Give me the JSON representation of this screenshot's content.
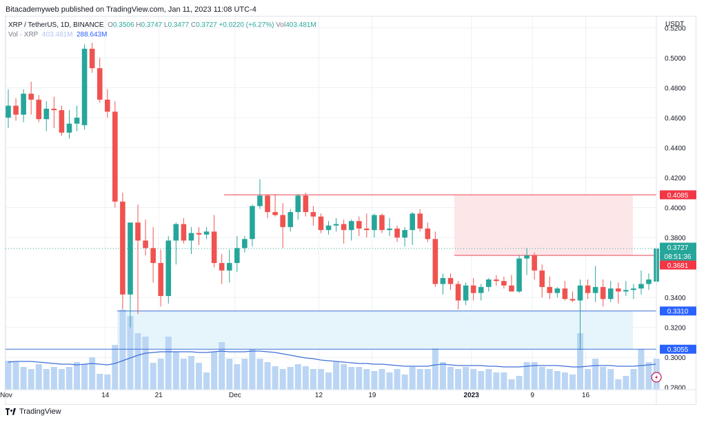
{
  "header": {
    "published": "Bitacademyweb published on TradingView.com, Jan 11, 2023 11:08 UTC-4"
  },
  "legend": {
    "symbol": "XRP / TetherUS, 1D, BINANCE",
    "open_label": "O",
    "open": "0.3506",
    "high_label": "H",
    "high": "0.3747",
    "low_label": "L",
    "low": "0.3477",
    "close_label": "C",
    "close": "0.3727",
    "change": "+0.0220 (+6.27%)",
    "vol_label": "Vol",
    "vol": "403.481M",
    "vol_row_label": "Vol · XRP",
    "vol_row_value": "403.481M",
    "vol_ma": "288.643M"
  },
  "footer": {
    "brand": "TradingView"
  },
  "chart_data": {
    "type": "candlestick",
    "currency": "USDT",
    "y_ticks": [
      "0.5200",
      "0.5000",
      "0.4800",
      "0.4600",
      "0.4400",
      "0.4200",
      "0.4000",
      "0.3800",
      "0.3400",
      "0.3200",
      "0.3000",
      "0.2800"
    ],
    "ylim": [
      0.2785,
      0.5275
    ],
    "x_ticks": [
      {
        "label": "Nov",
        "x": 0
      },
      {
        "label": "14",
        "x": 13
      },
      {
        "label": "21",
        "x": 20
      },
      {
        "label": "Dec",
        "x": 30
      },
      {
        "label": "12",
        "x": 41
      },
      {
        "label": "19",
        "x": 48
      },
      {
        "label": "2023",
        "x": 61
      },
      {
        "label": "9",
        "x": 69
      },
      {
        "label": "16",
        "x": 76
      }
    ],
    "price_labels": [
      {
        "text": "0.4085",
        "value": 0.4085,
        "color": "#f23645"
      },
      {
        "text": "0.3727",
        "value": 0.3727,
        "color": "#26a69a"
      },
      {
        "text": "08:51:36",
        "value": 0.3705,
        "color": "#26a69a"
      },
      {
        "text": "0.3681",
        "value": 0.3681,
        "color": "#f23645"
      },
      {
        "text": "0.3310",
        "value": 0.331,
        "color": "#2962ff"
      },
      {
        "text": "0.3055",
        "value": 0.3055,
        "color": "#2962ff"
      }
    ],
    "resistance_line": 0.4085,
    "entry_line": 0.3681,
    "support_lines": [
      0.331,
      0.3055
    ],
    "candles": [
      {
        "o": 0.46,
        "h": 0.479,
        "l": 0.453,
        "c": 0.468,
        "v": 0.042
      },
      {
        "o": 0.468,
        "h": 0.473,
        "l": 0.458,
        "c": 0.462,
        "v": 0.04
      },
      {
        "o": 0.462,
        "h": 0.479,
        "l": 0.457,
        "c": 0.476,
        "v": 0.033
      },
      {
        "o": 0.476,
        "h": 0.484,
        "l": 0.462,
        "c": 0.472,
        "v": 0.03
      },
      {
        "o": 0.472,
        "h": 0.475,
        "l": 0.457,
        "c": 0.459,
        "v": 0.037
      },
      {
        "o": 0.459,
        "h": 0.471,
        "l": 0.451,
        "c": 0.466,
        "v": 0.03
      },
      {
        "o": 0.466,
        "h": 0.474,
        "l": 0.453,
        "c": 0.465,
        "v": 0.033
      },
      {
        "o": 0.465,
        "h": 0.468,
        "l": 0.448,
        "c": 0.45,
        "v": 0.03
      },
      {
        "o": 0.45,
        "h": 0.465,
        "l": 0.446,
        "c": 0.456,
        "v": 0.033
      },
      {
        "o": 0.456,
        "h": 0.468,
        "l": 0.451,
        "c": 0.46,
        "v": 0.04
      },
      {
        "o": 0.455,
        "h": 0.509,
        "l": 0.452,
        "c": 0.506,
        "v": 0.037
      },
      {
        "o": 0.506,
        "h": 0.51,
        "l": 0.49,
        "c": 0.493,
        "v": 0.047
      },
      {
        "o": 0.493,
        "h": 0.5,
        "l": 0.47,
        "c": 0.472,
        "v": 0.023
      },
      {
        "o": 0.472,
        "h": 0.479,
        "l": 0.46,
        "c": 0.464,
        "v": 0.022
      },
      {
        "o": 0.464,
        "h": 0.471,
        "l": 0.4,
        "c": 0.404,
        "v": 0.065
      },
      {
        "o": 0.404,
        "h": 0.41,
        "l": 0.332,
        "c": 0.342,
        "v": 0.116
      },
      {
        "o": 0.342,
        "h": 0.39,
        "l": 0.32,
        "c": 0.39,
        "v": 0.107
      },
      {
        "o": 0.39,
        "h": 0.402,
        "l": 0.329,
        "c": 0.378,
        "v": 0.082
      },
      {
        "o": 0.378,
        "h": 0.392,
        "l": 0.368,
        "c": 0.373,
        "v": 0.077
      },
      {
        "o": 0.373,
        "h": 0.387,
        "l": 0.35,
        "c": 0.363,
        "v": 0.039
      },
      {
        "o": 0.363,
        "h": 0.372,
        "l": 0.334,
        "c": 0.341,
        "v": 0.045
      },
      {
        "o": 0.341,
        "h": 0.381,
        "l": 0.336,
        "c": 0.378,
        "v": 0.077
      },
      {
        "o": 0.378,
        "h": 0.39,
        "l": 0.362,
        "c": 0.389,
        "v": 0.055
      },
      {
        "o": 0.389,
        "h": 0.393,
        "l": 0.376,
        "c": 0.378,
        "v": 0.045
      },
      {
        "o": 0.378,
        "h": 0.387,
        "l": 0.369,
        "c": 0.383,
        "v": 0.049
      },
      {
        "o": 0.383,
        "h": 0.387,
        "l": 0.375,
        "c": 0.382,
        "v": 0.039
      },
      {
        "o": 0.382,
        "h": 0.387,
        "l": 0.379,
        "c": 0.384,
        "v": 0.025
      },
      {
        "o": 0.384,
        "h": 0.395,
        "l": 0.36,
        "c": 0.363,
        "v": 0.055
      },
      {
        "o": 0.363,
        "h": 0.369,
        "l": 0.349,
        "c": 0.358,
        "v": 0.069
      },
      {
        "o": 0.358,
        "h": 0.372,
        "l": 0.35,
        "c": 0.363,
        "v": 0.045
      },
      {
        "o": 0.363,
        "h": 0.381,
        "l": 0.357,
        "c": 0.373,
        "v": 0.037
      },
      {
        "o": 0.373,
        "h": 0.381,
        "l": 0.37,
        "c": 0.379,
        "v": 0.045
      },
      {
        "o": 0.379,
        "h": 0.402,
        "l": 0.374,
        "c": 0.401,
        "v": 0.059
      },
      {
        "o": 0.401,
        "h": 0.419,
        "l": 0.399,
        "c": 0.408,
        "v": 0.045
      },
      {
        "o": 0.408,
        "h": 0.409,
        "l": 0.393,
        "c": 0.397,
        "v": 0.04
      },
      {
        "o": 0.397,
        "h": 0.409,
        "l": 0.394,
        "c": 0.395,
        "v": 0.034
      },
      {
        "o": 0.395,
        "h": 0.403,
        "l": 0.373,
        "c": 0.387,
        "v": 0.03
      },
      {
        "o": 0.387,
        "h": 0.399,
        "l": 0.384,
        "c": 0.397,
        "v": 0.033
      },
      {
        "o": 0.397,
        "h": 0.409,
        "l": 0.392,
        "c": 0.408,
        "v": 0.037
      },
      {
        "o": 0.408,
        "h": 0.41,
        "l": 0.394,
        "c": 0.397,
        "v": 0.034
      },
      {
        "o": 0.397,
        "h": 0.401,
        "l": 0.388,
        "c": 0.394,
        "v": 0.03
      },
      {
        "o": 0.394,
        "h": 0.396,
        "l": 0.383,
        "c": 0.385,
        "v": 0.03
      },
      {
        "o": 0.385,
        "h": 0.391,
        "l": 0.382,
        "c": 0.388,
        "v": 0.025
      },
      {
        "o": 0.388,
        "h": 0.393,
        "l": 0.384,
        "c": 0.389,
        "v": 0.04
      },
      {
        "o": 0.389,
        "h": 0.392,
        "l": 0.376,
        "c": 0.385,
        "v": 0.037
      },
      {
        "o": 0.385,
        "h": 0.392,
        "l": 0.378,
        "c": 0.391,
        "v": 0.033
      },
      {
        "o": 0.391,
        "h": 0.394,
        "l": 0.381,
        "c": 0.386,
        "v": 0.033
      },
      {
        "o": 0.386,
        "h": 0.396,
        "l": 0.38,
        "c": 0.385,
        "v": 0.03
      },
      {
        "o": 0.385,
        "h": 0.396,
        "l": 0.38,
        "c": 0.395,
        "v": 0.027
      },
      {
        "o": 0.395,
        "h": 0.396,
        "l": 0.383,
        "c": 0.385,
        "v": 0.03
      },
      {
        "o": 0.385,
        "h": 0.393,
        "l": 0.381,
        "c": 0.386,
        "v": 0.025
      },
      {
        "o": 0.386,
        "h": 0.388,
        "l": 0.377,
        "c": 0.38,
        "v": 0.03
      },
      {
        "o": 0.38,
        "h": 0.387,
        "l": 0.374,
        "c": 0.385,
        "v": 0.022
      },
      {
        "o": 0.385,
        "h": 0.397,
        "l": 0.375,
        "c": 0.396,
        "v": 0.033
      },
      {
        "o": 0.396,
        "h": 0.399,
        "l": 0.384,
        "c": 0.386,
        "v": 0.03
      },
      {
        "o": 0.386,
        "h": 0.39,
        "l": 0.377,
        "c": 0.379,
        "v": 0.03
      },
      {
        "o": 0.379,
        "h": 0.384,
        "l": 0.347,
        "c": 0.349,
        "v": 0.06
      },
      {
        "o": 0.349,
        "h": 0.356,
        "l": 0.342,
        "c": 0.353,
        "v": 0.04
      },
      {
        "o": 0.353,
        "h": 0.356,
        "l": 0.345,
        "c": 0.349,
        "v": 0.033
      },
      {
        "o": 0.349,
        "h": 0.351,
        "l": 0.332,
        "c": 0.338,
        "v": 0.03
      },
      {
        "o": 0.338,
        "h": 0.35,
        "l": 0.335,
        "c": 0.348,
        "v": 0.033
      },
      {
        "o": 0.348,
        "h": 0.353,
        "l": 0.338,
        "c": 0.343,
        "v": 0.03
      },
      {
        "o": 0.343,
        "h": 0.349,
        "l": 0.338,
        "c": 0.347,
        "v": 0.027
      },
      {
        "o": 0.347,
        "h": 0.353,
        "l": 0.344,
        "c": 0.352,
        "v": 0.03
      },
      {
        "o": 0.352,
        "h": 0.355,
        "l": 0.348,
        "c": 0.351,
        "v": 0.025
      },
      {
        "o": 0.351,
        "h": 0.354,
        "l": 0.346,
        "c": 0.348,
        "v": 0.025
      },
      {
        "o": 0.348,
        "h": 0.355,
        "l": 0.344,
        "c": 0.344,
        "v": 0.015
      },
      {
        "o": 0.344,
        "h": 0.368,
        "l": 0.343,
        "c": 0.366,
        "v": 0.02
      },
      {
        "o": 0.366,
        "h": 0.373,
        "l": 0.355,
        "c": 0.368,
        "v": 0.04
      },
      {
        "o": 0.368,
        "h": 0.37,
        "l": 0.352,
        "c": 0.358,
        "v": 0.04
      },
      {
        "o": 0.358,
        "h": 0.362,
        "l": 0.34,
        "c": 0.347,
        "v": 0.033
      },
      {
        "o": 0.347,
        "h": 0.354,
        "l": 0.339,
        "c": 0.343,
        "v": 0.03
      },
      {
        "o": 0.343,
        "h": 0.347,
        "l": 0.34,
        "c": 0.346,
        "v": 0.027
      },
      {
        "o": 0.346,
        "h": 0.351,
        "l": 0.338,
        "c": 0.339,
        "v": 0.025
      },
      {
        "o": 0.339,
        "h": 0.344,
        "l": 0.337,
        "c": 0.338,
        "v": 0.022
      },
      {
        "o": 0.338,
        "h": 0.352,
        "l": 0.305,
        "c": 0.348,
        "v": 0.082
      },
      {
        "o": 0.348,
        "h": 0.352,
        "l": 0.339,
        "c": 0.343,
        "v": 0.03
      },
      {
        "o": 0.343,
        "h": 0.361,
        "l": 0.337,
        "c": 0.347,
        "v": 0.045
      },
      {
        "o": 0.347,
        "h": 0.352,
        "l": 0.334,
        "c": 0.339,
        "v": 0.033
      },
      {
        "o": 0.339,
        "h": 0.351,
        "l": 0.337,
        "c": 0.346,
        "v": 0.03
      },
      {
        "o": 0.346,
        "h": 0.35,
        "l": 0.336,
        "c": 0.344,
        "v": 0.015
      },
      {
        "o": 0.344,
        "h": 0.351,
        "l": 0.341,
        "c": 0.345,
        "v": 0.02
      },
      {
        "o": 0.345,
        "h": 0.349,
        "l": 0.339,
        "c": 0.346,
        "v": 0.03
      },
      {
        "o": 0.346,
        "h": 0.358,
        "l": 0.342,
        "c": 0.349,
        "v": 0.059
      },
      {
        "o": 0.349,
        "h": 0.356,
        "l": 0.345,
        "c": 0.352,
        "v": 0.04
      },
      {
        "o": 0.3506,
        "h": 0.3747,
        "l": 0.3477,
        "c": 0.3727,
        "v": 0.045
      }
    ],
    "volume_ma": [
      0.04,
      0.041,
      0.041,
      0.041,
      0.04,
      0.039,
      0.038,
      0.037,
      0.037,
      0.036,
      0.037,
      0.038,
      0.037,
      0.036,
      0.038,
      0.042,
      0.046,
      0.05,
      0.053,
      0.054,
      0.055,
      0.055,
      0.055,
      0.055,
      0.055,
      0.054,
      0.054,
      0.055,
      0.056,
      0.055,
      0.055,
      0.055,
      0.056,
      0.056,
      0.055,
      0.054,
      0.052,
      0.05,
      0.048,
      0.046,
      0.045,
      0.043,
      0.042,
      0.041,
      0.04,
      0.039,
      0.038,
      0.038,
      0.037,
      0.037,
      0.036,
      0.035,
      0.034,
      0.034,
      0.034,
      0.034,
      0.036,
      0.037,
      0.036,
      0.035,
      0.035,
      0.035,
      0.035,
      0.034,
      0.034,
      0.033,
      0.033,
      0.033,
      0.034,
      0.035,
      0.035,
      0.035,
      0.035,
      0.034,
      0.033,
      0.033,
      0.034,
      0.035,
      0.035,
      0.035,
      0.034,
      0.034,
      0.034,
      0.035,
      0.036,
      0.037
    ]
  }
}
